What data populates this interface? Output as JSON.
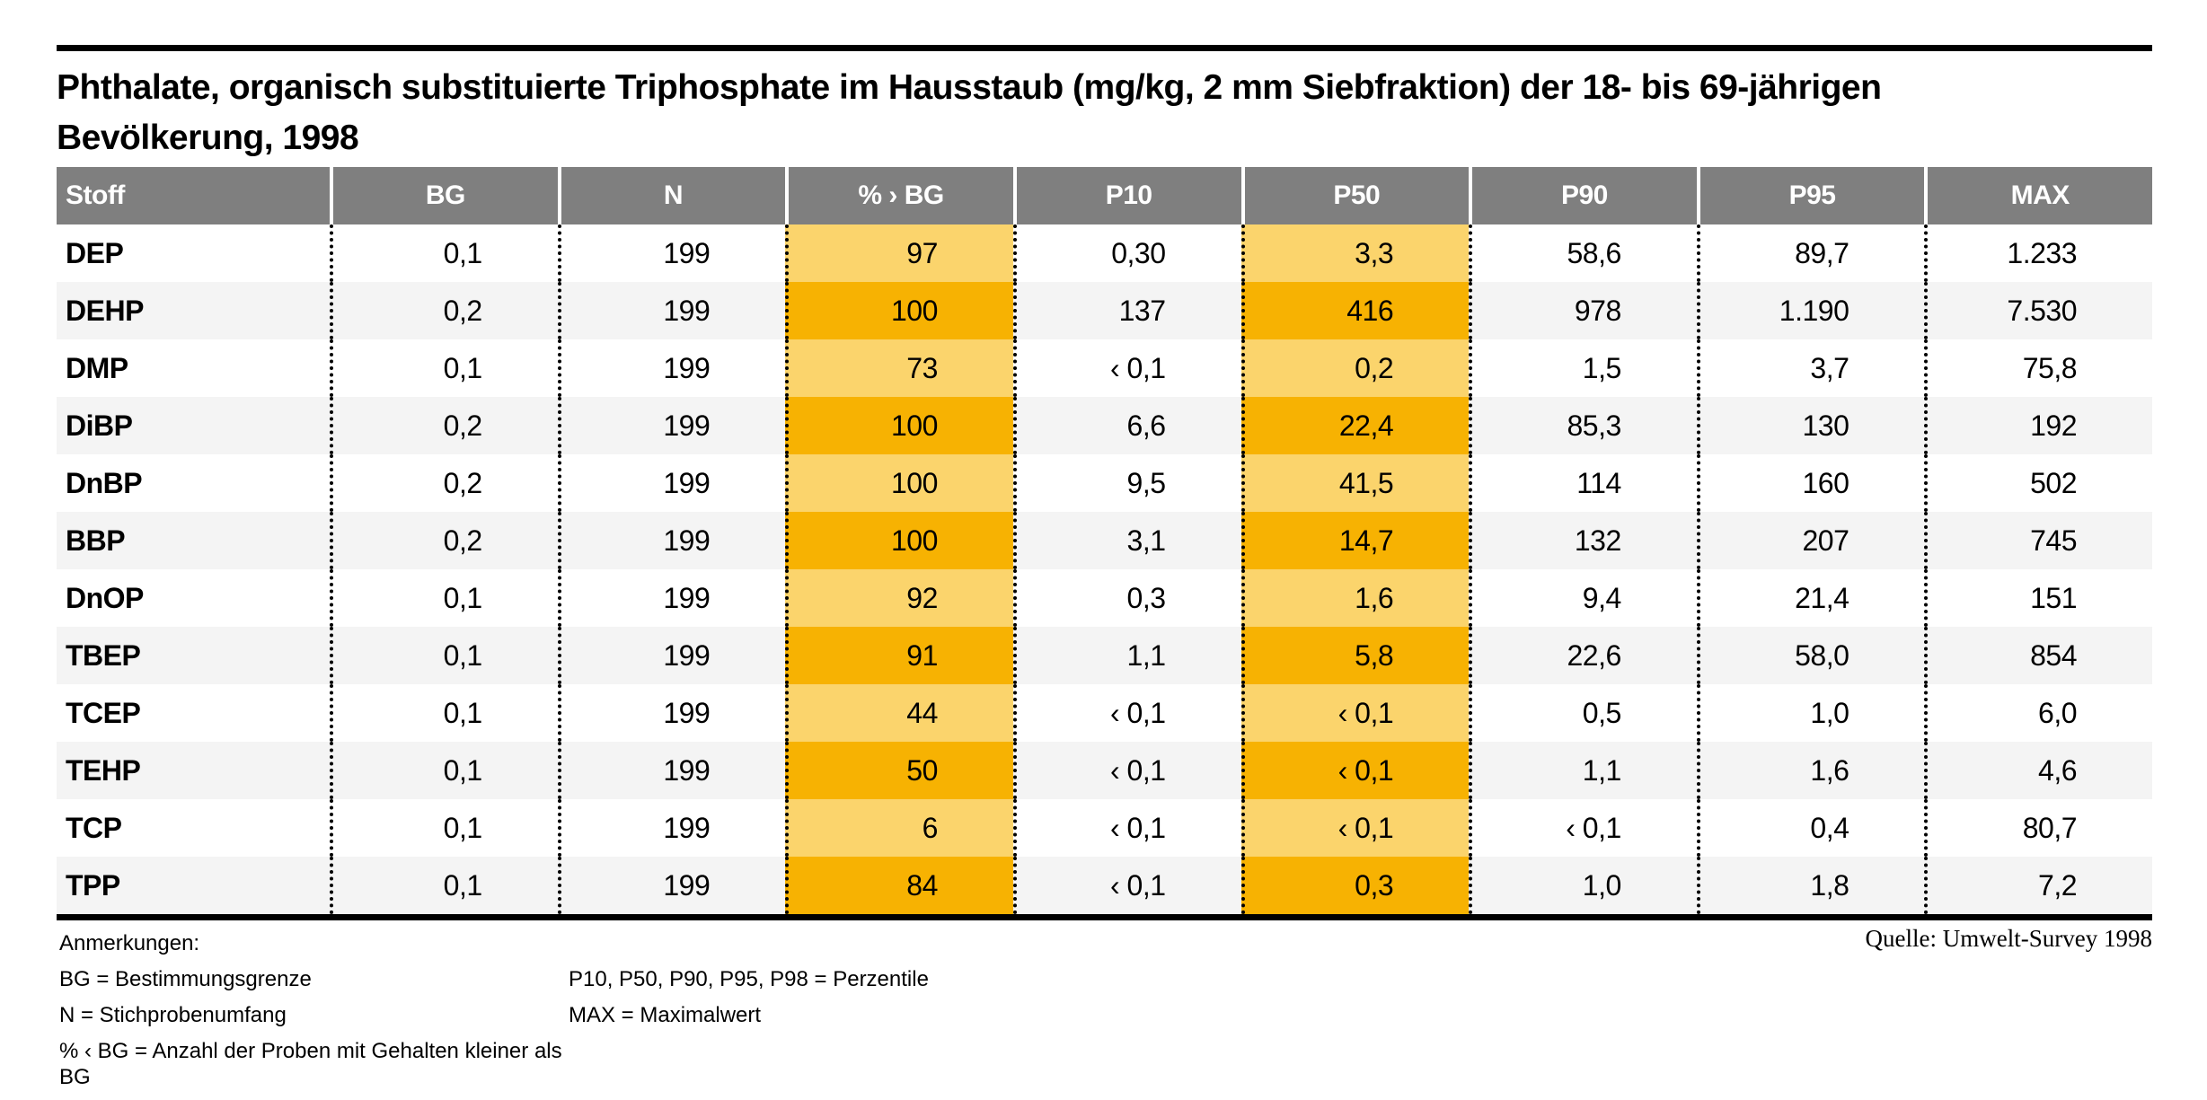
{
  "chart_data": {
    "type": "table",
    "title": "Phthalate, organisch substituierte Triphosphate im Hausstaub (mg/kg, 2 mm Siebfraktion) der 18- bis 69-jährigen Bevölkerung, 1998",
    "title_lines": [
      "Phthalate, organisch substituierte Triphosphate im Hausstaub (mg/kg, 2 mm Siebfraktion) der 18- bis 69-jährigen",
      "Bevölkerung, 1998"
    ],
    "columns": [
      "Stoff",
      "BG",
      "N",
      "% › BG",
      "P10",
      "P50",
      "P90",
      "P95",
      "MAX"
    ],
    "highlight_column_indices": [
      3,
      5
    ],
    "rows": [
      [
        "DEP",
        "0,1",
        "199",
        "97",
        "0,30",
        "3,3",
        "58,6",
        "89,7",
        "1.233"
      ],
      [
        "DEHP",
        "0,2",
        "199",
        "100",
        "137",
        "416",
        "978",
        "1.190",
        "7.530"
      ],
      [
        "DMP",
        "0,1",
        "199",
        "73",
        "‹ 0,1",
        "0,2",
        "1,5",
        "3,7",
        "75,8"
      ],
      [
        "DiBP",
        "0,2",
        "199",
        "100",
        "6,6",
        "22,4",
        "85,3",
        "130",
        "192"
      ],
      [
        "DnBP",
        "0,2",
        "199",
        "100",
        "9,5",
        "41,5",
        "114",
        "160",
        "502"
      ],
      [
        "BBP",
        "0,2",
        "199",
        "100",
        "3,1",
        "14,7",
        "132",
        "207",
        "745"
      ],
      [
        "DnOP",
        "0,1",
        "199",
        "92",
        "0,3",
        "1,6",
        "9,4",
        "21,4",
        "151"
      ],
      [
        "TBEP",
        "0,1",
        "199",
        "91",
        "1,1",
        "5,8",
        "22,6",
        "58,0",
        "854"
      ],
      [
        "TCEP",
        "0,1",
        "199",
        "44",
        "‹ 0,1",
        "‹ 0,1",
        "0,5",
        "1,0",
        "6,0"
      ],
      [
        "TEHP",
        "0,1",
        "199",
        "50",
        "‹ 0,1",
        "‹ 0,1",
        "1,1",
        "1,6",
        "4,6"
      ],
      [
        "TCP",
        "0,1",
        "199",
        "6",
        "‹ 0,1",
        "‹ 0,1",
        "‹ 0,1",
        "0,4",
        "80,7"
      ],
      [
        "TPP",
        "0,1",
        "199",
        "84",
        "‹ 0,1",
        "0,3",
        "1,0",
        "1,8",
        "7,2"
      ]
    ],
    "source": "Quelle: Umwelt-Survey 1998"
  },
  "notes": {
    "heading": "Anmerkungen:",
    "left": [
      "BG = Bestimmungsgrenze",
      "N = Stichprobenumfang",
      "% ‹ BG = Anzahl der Proben mit Gehalten kleiner als BG"
    ],
    "right": [
      "P10, P50, P90, P95, P98 = Perzentile",
      "MAX = Maximalwert"
    ]
  },
  "colors": {
    "header-bg": "#7f7f7f",
    "row-alt": "#f4f4f4",
    "highlight-light": "#fbd46c",
    "highlight-dark": "#f7b202",
    "rule": "#000000",
    "text": "#000000"
  }
}
